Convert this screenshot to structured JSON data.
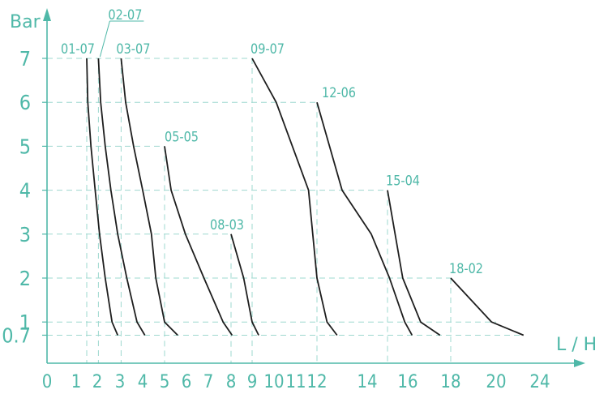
{
  "chart_data": {
    "type": "line",
    "xlabel": "L / H",
    "ylabel": "Bar",
    "x_ticks": [
      {
        "label": "0",
        "value": 0
      },
      {
        "label": "1",
        "value": 1
      },
      {
        "label": "2",
        "value": 2
      },
      {
        "label": "3",
        "value": 3
      },
      {
        "label": "4",
        "value": 4
      },
      {
        "label": "5",
        "value": 5
      },
      {
        "label": "6",
        "value": 6
      },
      {
        "label": "7",
        "value": 7
      },
      {
        "label": "8",
        "value": 8
      },
      {
        "label": "9",
        "value": 9
      },
      {
        "label": "10",
        "value": 10
      },
      {
        "label": "11",
        "value": 11
      },
      {
        "label": "12",
        "value": 12
      },
      {
        "label": "14",
        "value": 14
      },
      {
        "label": "16",
        "value": 16
      },
      {
        "label": "18",
        "value": 18
      },
      {
        "label": "20",
        "value": 20
      },
      {
        "label": "24",
        "value": 24
      }
    ],
    "y_ticks": [
      {
        "label": "0.7",
        "value": 0.7
      },
      {
        "label": "1",
        "value": 1
      },
      {
        "label": "2",
        "value": 2
      },
      {
        "label": "3",
        "value": 3
      },
      {
        "label": "4",
        "value": 4
      },
      {
        "label": "5",
        "value": 5
      },
      {
        "label": "6",
        "value": 6
      },
      {
        "label": "7",
        "value": 7
      }
    ],
    "xlim": [
      0,
      24
    ],
    "ylim": [
      0,
      7
    ],
    "grid": "dashed at series starting points",
    "series": [
      {
        "name": "01-07",
        "points": [
          [
            1.5,
            7
          ],
          [
            1.55,
            6
          ],
          [
            1.7,
            5
          ],
          [
            1.9,
            4
          ],
          [
            2.1,
            3
          ],
          [
            2.35,
            2
          ],
          [
            2.65,
            1
          ],
          [
            2.9,
            0.7
          ]
        ]
      },
      {
        "name": "02-07",
        "points": [
          [
            2.05,
            7
          ],
          [
            2.15,
            6
          ],
          [
            2.35,
            5
          ],
          [
            2.6,
            4
          ],
          [
            2.9,
            3
          ],
          [
            3.3,
            2
          ],
          [
            3.75,
            1
          ],
          [
            4.1,
            0.7
          ]
        ]
      },
      {
        "name": "03-07",
        "points": [
          [
            3.05,
            7
          ],
          [
            3.25,
            6
          ],
          [
            3.6,
            5
          ],
          [
            4.0,
            4
          ],
          [
            4.4,
            3
          ],
          [
            4.6,
            2
          ],
          [
            5.0,
            1
          ],
          [
            5.6,
            0.7
          ]
        ]
      },
      {
        "name": "05-05",
        "points": [
          [
            5.0,
            5
          ],
          [
            5.3,
            4
          ],
          [
            5.95,
            3
          ],
          [
            6.8,
            2
          ],
          [
            7.65,
            1
          ],
          [
            8.05,
            0.7
          ]
        ]
      },
      {
        "name": "08-03",
        "points": [
          [
            8.0,
            3
          ],
          [
            8.6,
            2
          ],
          [
            9.0,
            1
          ],
          [
            9.3,
            0.7
          ]
        ]
      },
      {
        "name": "09-07",
        "points": [
          [
            9.0,
            7
          ],
          [
            10.1,
            6
          ],
          [
            11.6,
            4
          ],
          [
            12.0,
            2
          ],
          [
            12.4,
            1
          ],
          [
            12.8,
            0.7
          ]
        ]
      },
      {
        "name": "12-06",
        "points": [
          [
            12.0,
            6
          ],
          [
            13.0,
            4
          ],
          [
            14.2,
            3
          ],
          [
            15.1,
            2
          ],
          [
            15.85,
            1
          ],
          [
            16.2,
            0.7
          ]
        ]
      },
      {
        "name": "15-04",
        "points": [
          [
            15.0,
            4
          ],
          [
            15.75,
            2
          ],
          [
            16.6,
            1
          ],
          [
            17.5,
            0.7
          ]
        ]
      },
      {
        "name": "18-02",
        "points": [
          [
            18.0,
            2
          ],
          [
            19.8,
            1
          ],
          [
            22.5,
            0.7
          ]
        ]
      }
    ]
  },
  "colors": {
    "axis": "#4fb8a8",
    "grid": "#9ed8cf",
    "line": "#1e1e1e",
    "text": "#4fb8a8"
  }
}
